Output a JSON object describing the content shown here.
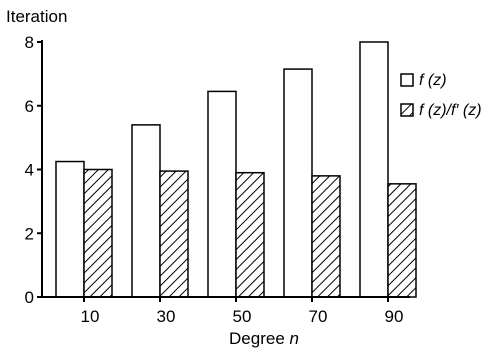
{
  "chart_data": {
    "type": "bar",
    "title": "",
    "ylabel": "Iteration",
    "xlabel": "Degree",
    "xlabel_var": "n",
    "categories": [
      "10",
      "30",
      "50",
      "70",
      "90"
    ],
    "series": [
      {
        "name": "f (z)",
        "values": [
          4.25,
          5.4,
          6.45,
          7.15,
          8.0
        ],
        "fill": "#ffffff"
      },
      {
        "name": "f (z)/f′ (z)",
        "values": [
          4.0,
          3.95,
          3.9,
          3.8,
          3.55
        ],
        "fill": "hatch"
      }
    ],
    "ylim": [
      0,
      8
    ],
    "yticks": [
      0,
      2,
      4,
      6,
      8
    ],
    "grid": false,
    "legend": "right"
  }
}
